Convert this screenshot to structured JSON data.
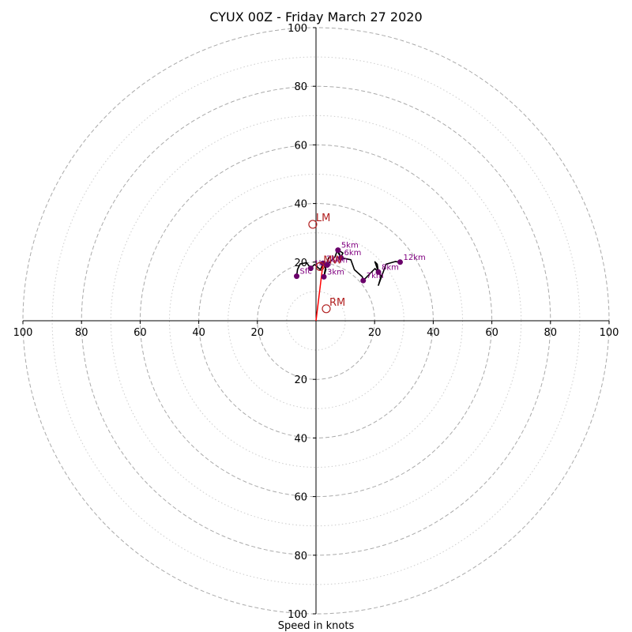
{
  "chart_data": {
    "type": "hodograph",
    "title": "CYUX 00Z - Friday March 27 2020",
    "xlabel": "Speed in knots",
    "range": [
      -100,
      100
    ],
    "major_rings": [
      20,
      40,
      60,
      80,
      100
    ],
    "minor_rings": [
      10,
      30,
      50,
      70,
      90
    ],
    "x_tick_labels": [
      "100",
      "80",
      "60",
      "40",
      "20",
      "20",
      "40",
      "60",
      "80",
      "100"
    ],
    "y_tick_labels": [
      "100",
      "80",
      "60",
      "40",
      "20",
      "20",
      "40",
      "60",
      "80",
      "100"
    ],
    "colors": {
      "trace": "#000000",
      "height_marker": "#6a006a",
      "height_label": "#800080",
      "storm_motion": "#b22222",
      "shear_vector": "#ff0000",
      "ring": "#aaaaaa"
    },
    "trace": [
      [
        -6.6,
        15.2
      ],
      [
        -6.3,
        17.5
      ],
      [
        -5.4,
        19.4
      ],
      [
        -3.2,
        19.8
      ],
      [
        -1.8,
        17.9
      ],
      [
        -0.5,
        19.2
      ],
      [
        1.5,
        17.4
      ],
      [
        2.4,
        19.6
      ],
      [
        3.4,
        17.6
      ],
      [
        2.7,
        15.0
      ],
      [
        3.2,
        17.9
      ],
      [
        4.3,
        21.5
      ],
      [
        3.8,
        19.0
      ],
      [
        6.5,
        21.8
      ],
      [
        7.2,
        23.8
      ],
      [
        8.5,
        21.7
      ],
      [
        9.2,
        23.1
      ],
      [
        7.5,
        24.1
      ],
      [
        8.5,
        21.5
      ],
      [
        11.9,
        20.8
      ],
      [
        13.1,
        17.4
      ],
      [
        15.8,
        15.0
      ],
      [
        16.1,
        13.7
      ],
      [
        20.1,
        17.8
      ],
      [
        21.3,
        16.6
      ],
      [
        20.1,
        20.1
      ],
      [
        20.9,
        19.3
      ],
      [
        21.3,
        16.6
      ],
      [
        22.2,
        15.2
      ],
      [
        21.3,
        12.1
      ],
      [
        23.9,
        19.3
      ],
      [
        27.0,
        20.2
      ],
      [
        28.7,
        20.0
      ]
    ],
    "height_markers": [
      {
        "label": "Sfc",
        "u": -6.6,
        "v": 15.2
      },
      {
        "label": "1km",
        "u": -1.8,
        "v": 17.9
      },
      {
        "label": "2km",
        "u": 2.4,
        "v": 19.6
      },
      {
        "label": "3km",
        "u": 2.7,
        "v": 15.0
      },
      {
        "label": "4km",
        "u": 3.8,
        "v": 19.0
      },
      {
        "label": "5km",
        "u": 7.5,
        "v": 24.1
      },
      {
        "label": "6km",
        "u": 8.5,
        "v": 21.5
      },
      {
        "label": "7km",
        "u": 16.1,
        "v": 13.7
      },
      {
        "label": "8km",
        "u": 21.3,
        "v": 16.6
      },
      {
        "label": "12km",
        "u": 28.7,
        "v": 20.0
      }
    ],
    "storm_motion": [
      {
        "label": "LM",
        "u": -1.1,
        "v": 32.9
      },
      {
        "label": "RM",
        "u": 3.5,
        "v": 4.1
      },
      {
        "label": "MW",
        "u": 1.4,
        "v": 18.5
      }
    ],
    "shear_vector": {
      "u0": 0,
      "v0": 0,
      "u1": 2.4,
      "v1": 19.6
    }
  }
}
